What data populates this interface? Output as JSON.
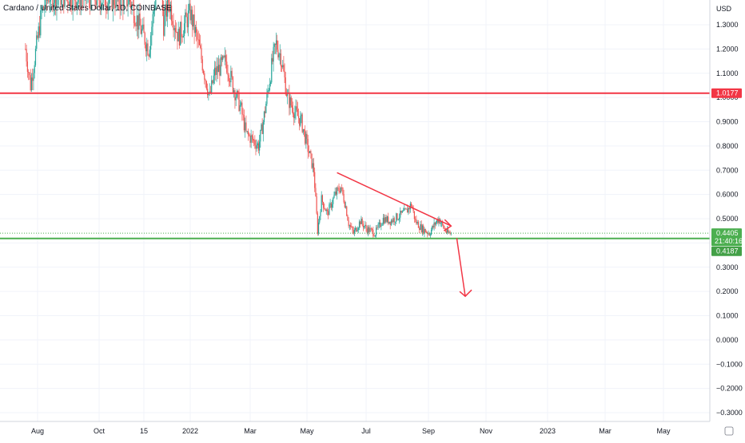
{
  "chart_data": {
    "type": "candlestick",
    "title": "Cardano / United States Dollar, 1D, COINBASE",
    "currency": "USD",
    "y_ticks": [
      "1.3000",
      "1.2000",
      "1.1000",
      "1.0000",
      "0.9000",
      "0.8000",
      "0.7000",
      "0.6000",
      "0.5000",
      "0.4000",
      "0.3000",
      "0.2000",
      "0.1000",
      "0.0000",
      "−0.1000",
      "−0.2000",
      "−0.3000"
    ],
    "y_tick_values": [
      1.3,
      1.2,
      1.1,
      1.0,
      0.9,
      0.8,
      0.7,
      0.6,
      0.5,
      0.4,
      0.3,
      0.2,
      0.1,
      0.0,
      -0.1,
      -0.2,
      -0.3
    ],
    "ylim": [
      -0.33,
      1.4
    ],
    "x_ticks": [
      "Aug",
      "Oct",
      "15",
      "2022",
      "Mar",
      "May",
      "Jul",
      "Sep",
      "Nov",
      "2023",
      "Mar",
      "May"
    ],
    "x_tick_dates": [
      "2021-08-01",
      "2021-10-01",
      "2021-11-15",
      "2022-01-01",
      "2022-03-01",
      "2022-05-01",
      "2022-07-01",
      "2022-09-01",
      "2022-11-01",
      "2023-01-01",
      "2023-03-01",
      "2023-05-01"
    ],
    "grid": true,
    "price_path": [
      [
        "2021-07-20",
        1.2
      ],
      [
        "2021-07-25",
        1.05
      ],
      [
        "2021-08-05",
        1.35
      ],
      [
        "2021-08-12",
        1.42
      ],
      [
        "2021-11-01",
        1.4
      ],
      [
        "2021-11-10",
        1.3
      ],
      [
        "2021-11-20",
        1.2
      ],
      [
        "2021-12-01",
        1.55
      ],
      [
        "2021-12-05",
        1.3
      ],
      [
        "2021-12-10",
        1.4
      ],
      [
        "2021-12-20",
        1.25
      ],
      [
        "2022-01-01",
        1.35
      ],
      [
        "2022-01-10",
        1.2
      ],
      [
        "2022-01-20",
        1.0
      ],
      [
        "2022-01-25",
        1.1
      ],
      [
        "2022-02-05",
        1.15
      ],
      [
        "2022-02-12",
        1.05
      ],
      [
        "2022-02-20",
        0.95
      ],
      [
        "2022-02-25",
        0.85
      ],
      [
        "2022-03-05",
        0.82
      ],
      [
        "2022-03-10",
        0.8
      ],
      [
        "2022-03-15",
        0.9
      ],
      [
        "2022-03-25",
        1.15
      ],
      [
        "2022-03-29",
        1.22
      ],
      [
        "2022-04-03",
        1.17
      ],
      [
        "2022-04-10",
        1.0
      ],
      [
        "2022-04-18",
        0.94
      ],
      [
        "2022-04-25",
        0.9
      ],
      [
        "2022-05-02",
        0.79
      ],
      [
        "2022-05-08",
        0.7
      ],
      [
        "2022-05-12",
        0.45
      ],
      [
        "2022-05-16",
        0.58
      ],
      [
        "2022-05-22",
        0.52
      ],
      [
        "2022-05-30",
        0.6
      ],
      [
        "2022-06-05",
        0.63
      ],
      [
        "2022-06-10",
        0.55
      ],
      [
        "2022-06-13",
        0.48
      ],
      [
        "2022-06-18",
        0.44
      ],
      [
        "2022-06-25",
        0.49
      ],
      [
        "2022-07-01",
        0.46
      ],
      [
        "2022-07-10",
        0.44
      ],
      [
        "2022-07-18",
        0.5
      ],
      [
        "2022-07-25",
        0.49
      ],
      [
        "2022-08-02",
        0.51
      ],
      [
        "2022-08-10",
        0.53
      ],
      [
        "2022-08-15",
        0.56
      ],
      [
        "2022-08-19",
        0.49
      ],
      [
        "2022-08-25",
        0.46
      ],
      [
        "2022-09-02",
        0.44
      ],
      [
        "2022-09-08",
        0.48
      ],
      [
        "2022-09-12",
        0.5
      ],
      [
        "2022-09-16",
        0.47
      ],
      [
        "2022-09-21",
        0.44
      ],
      [
        "2022-09-25",
        0.44
      ]
    ],
    "annotations": {
      "resistance_line": {
        "value": 1.0177,
        "label": "1.0177",
        "color": "#f23645"
      },
      "support_line": {
        "value": 0.4187,
        "label": "0.4187",
        "color": "#089981"
      },
      "current_price": {
        "value": 0.4405,
        "label": "0.4405",
        "countdown": "21:40:16",
        "color": "#4caf50"
      },
      "trendline": {
        "start": [
          "2022-06-01",
          0.69
        ],
        "end": [
          "2022-09-25",
          0.47
        ],
        "color": "#f23645"
      },
      "projection_arrow": {
        "start": [
          "2022-10-01",
          0.42
        ],
        "end": [
          "2022-10-10",
          0.18
        ],
        "color": "#f23645"
      }
    },
    "colors": {
      "up": "#26a69a",
      "down": "#ef5350",
      "axis_text": "#131722",
      "grid": "#f0f3fa"
    }
  }
}
